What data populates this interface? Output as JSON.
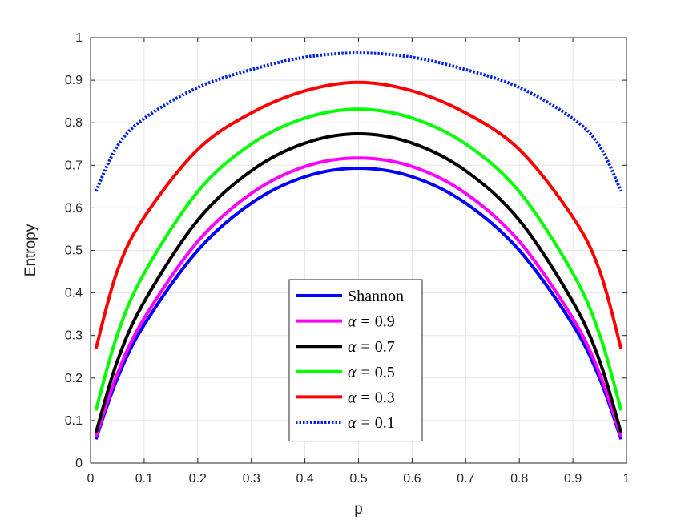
{
  "chart_data": {
    "type": "line",
    "xlabel": "p",
    "ylabel": "Entropy",
    "xlim": [
      0,
      1
    ],
    "ylim": [
      0,
      1
    ],
    "xticks": [
      "0",
      "0.1",
      "0.2",
      "0.3",
      "0.4",
      "0.5",
      "0.6",
      "0.7",
      "0.8",
      "0.9",
      "1"
    ],
    "yticks": [
      "0",
      "0.1",
      "0.2",
      "0.3",
      "0.4",
      "0.5",
      "0.6",
      "0.7",
      "0.8",
      "0.9",
      "1"
    ],
    "grid": true,
    "legend_position": "bottom-center",
    "x": [
      0.01,
      0.05,
      0.1,
      0.2,
      0.3,
      0.4,
      0.5,
      0.6,
      0.7,
      0.8,
      0.9,
      0.95,
      0.99
    ],
    "series": [
      {
        "name": "Shannon",
        "legend_html": "Shannon",
        "color": "#0000ff",
        "style": "solid",
        "values": [
          0.056,
          0.199,
          0.325,
          0.5,
          0.611,
          0.673,
          0.693,
          0.673,
          0.611,
          0.5,
          0.325,
          0.199,
          0.056
        ]
      },
      {
        "name": "α = 0.9",
        "legend_var": "α",
        "legend_value": "0.9",
        "color": "#ff00ff",
        "style": "solid",
        "values": [
          0.061,
          0.21,
          0.34,
          0.521,
          0.634,
          0.697,
          0.717,
          0.697,
          0.634,
          0.521,
          0.34,
          0.21,
          0.061
        ]
      },
      {
        "name": "α = 0.7",
        "legend_var": "α",
        "legend_value": "0.7",
        "color": "#000000",
        "style": "solid",
        "values": [
          0.071,
          0.24,
          0.379,
          0.571,
          0.687,
          0.752,
          0.774,
          0.752,
          0.687,
          0.571,
          0.379,
          0.24,
          0.071
        ]
      },
      {
        "name": "α = 0.5",
        "legend_var": "α",
        "legend_value": "0.5",
        "color": "#00ff00",
        "style": "solid",
        "values": [
          0.124,
          0.302,
          0.446,
          0.638,
          0.75,
          0.811,
          0.832,
          0.811,
          0.75,
          0.638,
          0.446,
          0.302,
          0.124
        ]
      },
      {
        "name": "α = 0.3",
        "legend_var": "α",
        "legend_value": "0.3",
        "color": "#ff0000",
        "style": "solid",
        "values": [
          0.269,
          0.452,
          0.578,
          0.737,
          0.823,
          0.875,
          0.895,
          0.875,
          0.823,
          0.737,
          0.578,
          0.452,
          0.269
        ]
      },
      {
        "name": "α = 0.1",
        "legend_var": "α",
        "legend_value": "0.1",
        "color": "#0022dd",
        "style": "dotted",
        "values": [
          0.639,
          0.745,
          0.81,
          0.883,
          0.925,
          0.954,
          0.964,
          0.954,
          0.925,
          0.883,
          0.81,
          0.745,
          0.639
        ]
      }
    ]
  }
}
